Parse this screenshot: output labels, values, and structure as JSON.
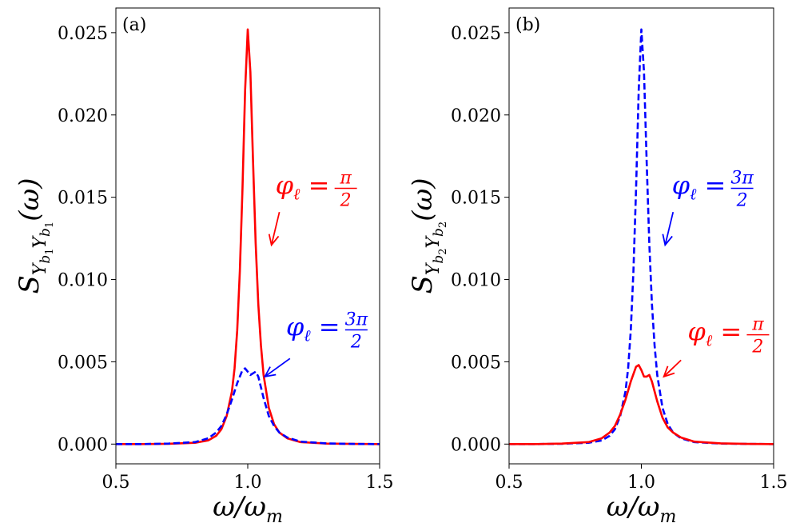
{
  "chart_data": [
    {
      "type": "line",
      "panel_label": "(a)",
      "xlabel": "ω/ω",
      "xlabel_sub": "m",
      "ylabel_main": "S",
      "ylabel_y1": "Y",
      "ylabel_y1_sub": "b",
      "ylabel_y1_subsub": "1",
      "ylabel_y2": "Y",
      "ylabel_y2_sub": "b",
      "ylabel_y2_subsub": "1",
      "ylabel_arg": "(ω)",
      "xlim": [
        0.5,
        1.5
      ],
      "ylim": [
        -0.0012,
        0.0265
      ],
      "xticks": [
        0.5,
        1.0,
        1.5
      ],
      "xtick_labels": [
        "0.5",
        "1.0",
        "1.5"
      ],
      "yticks": [
        0.0,
        0.005,
        0.01,
        0.015,
        0.02,
        0.025
      ],
      "ytick_labels": [
        "0.000",
        "0.005",
        "0.010",
        "0.015",
        "0.020",
        "0.025"
      ],
      "series": [
        {
          "name": "φℓ = π/2",
          "color": "#ff0000",
          "style": "solid",
          "x": [
            0.5,
            0.6,
            0.7,
            0.8,
            0.85,
            0.88,
            0.9,
            0.92,
            0.94,
            0.95,
            0.96,
            0.97,
            0.98,
            0.99,
            1.0,
            1.01,
            1.02,
            1.03,
            1.04,
            1.05,
            1.06,
            1.08,
            1.1,
            1.12,
            1.15,
            1.2,
            1.3,
            1.4,
            1.5
          ],
          "y": [
            0.0,
            0.0,
            2e-05,
            8e-05,
            0.00022,
            0.0005,
            0.0009,
            0.0017,
            0.0032,
            0.0046,
            0.0069,
            0.0105,
            0.0155,
            0.0215,
            0.0252,
            0.0226,
            0.0172,
            0.0122,
            0.0085,
            0.006,
            0.0042,
            0.0022,
            0.0012,
            0.0007,
            0.00035,
            0.00012,
            3e-05,
            1e-05,
            0.0
          ]
        },
        {
          "name": "φℓ = 3π/2",
          "color": "#0000ff",
          "style": "dashed",
          "x": [
            0.5,
            0.6,
            0.7,
            0.8,
            0.85,
            0.88,
            0.9,
            0.92,
            0.94,
            0.96,
            0.98,
            0.99,
            1.0,
            1.01,
            1.02,
            1.03,
            1.04,
            1.06,
            1.08,
            1.1,
            1.12,
            1.15,
            1.2,
            1.3,
            1.4,
            1.5
          ],
          "y": [
            0.0,
            0.0,
            3e-05,
            0.00012,
            0.00035,
            0.0007,
            0.0011,
            0.0018,
            0.0027,
            0.0037,
            0.0045,
            0.0046,
            0.0044,
            0.0042,
            0.0043,
            0.0044,
            0.0041,
            0.0028,
            0.0017,
            0.0011,
            0.0007,
            0.0004,
            0.00015,
            4e-05,
            1e-05,
            0.0
          ]
        }
      ],
      "annotations": [
        {
          "lhs": "φ",
          "sub": "ℓ",
          "eq": "=",
          "num": "π",
          "den": "2",
          "color": "#ff0000",
          "text_x": 1.105,
          "text_y": 0.0152,
          "arrow_from": [
            1.12,
            0.0141
          ],
          "arrow_to": [
            1.09,
            0.0121
          ]
        },
        {
          "lhs": "φ",
          "sub": "ℓ",
          "eq": "=",
          "num": "3π",
          "den": "2",
          "color": "#0000ff",
          "text_x": 1.145,
          "text_y": 0.0066,
          "arrow_from": [
            1.16,
            0.0052
          ],
          "arrow_to": [
            1.065,
            0.0041
          ]
        }
      ]
    },
    {
      "type": "line",
      "panel_label": "(b)",
      "xlabel": "ω/ω",
      "xlabel_sub": "m",
      "ylabel_main": "S",
      "ylabel_y1": "Y",
      "ylabel_y1_sub": "b",
      "ylabel_y1_subsub": "2",
      "ylabel_y2": "Y",
      "ylabel_y2_sub": "b",
      "ylabel_y2_subsub": "2",
      "ylabel_arg": "(ω)",
      "xlim": [
        0.5,
        1.5
      ],
      "ylim": [
        -0.0012,
        0.0265
      ],
      "xticks": [
        0.5,
        1.0,
        1.5
      ],
      "xtick_labels": [
        "0.5",
        "1.0",
        "1.5"
      ],
      "yticks": [
        0.0,
        0.005,
        0.01,
        0.015,
        0.02,
        0.025
      ],
      "ytick_labels": [
        "0.000",
        "0.005",
        "0.010",
        "0.015",
        "0.020",
        "0.025"
      ],
      "series": [
        {
          "name": "φℓ = 3π/2",
          "color": "#0000ff",
          "style": "dashed",
          "x": [
            0.5,
            0.6,
            0.7,
            0.8,
            0.85,
            0.88,
            0.9,
            0.92,
            0.94,
            0.95,
            0.96,
            0.97,
            0.98,
            0.99,
            1.0,
            1.01,
            1.02,
            1.03,
            1.04,
            1.05,
            1.06,
            1.08,
            1.1,
            1.12,
            1.15,
            1.2,
            1.3,
            1.4,
            1.5
          ],
          "y": [
            0.0,
            0.0,
            2e-05,
            8e-05,
            0.00022,
            0.0005,
            0.0009,
            0.0017,
            0.0032,
            0.0046,
            0.0069,
            0.0105,
            0.0155,
            0.0215,
            0.0252,
            0.0226,
            0.0172,
            0.0122,
            0.0085,
            0.006,
            0.0042,
            0.0022,
            0.0012,
            0.0007,
            0.00035,
            0.00012,
            3e-05,
            1e-05,
            0.0
          ]
        },
        {
          "name": "φℓ = π/2",
          "color": "#ff0000",
          "style": "solid",
          "x": [
            0.5,
            0.6,
            0.7,
            0.8,
            0.85,
            0.88,
            0.9,
            0.92,
            0.94,
            0.96,
            0.98,
            0.99,
            1.0,
            1.01,
            1.02,
            1.03,
            1.04,
            1.06,
            1.08,
            1.1,
            1.12,
            1.15,
            1.2,
            1.3,
            1.4,
            1.5
          ],
          "y": [
            0.0,
            0.0,
            3e-05,
            0.00012,
            0.00035,
            0.0007,
            0.0011,
            0.0018,
            0.0027,
            0.0038,
            0.0047,
            0.0048,
            0.0045,
            0.0041,
            0.0041,
            0.0042,
            0.0038,
            0.0026,
            0.0016,
            0.001,
            0.0007,
            0.0004,
            0.00015,
            4e-05,
            1e-05,
            0.0
          ]
        }
      ],
      "annotations": [
        {
          "lhs": "φ",
          "sub": "ℓ",
          "eq": "=",
          "num": "3π",
          "den": "2",
          "color": "#0000ff",
          "text_x": 1.115,
          "text_y": 0.0152,
          "arrow_from": [
            1.12,
            0.0141
          ],
          "arrow_to": [
            1.09,
            0.0121
          ]
        },
        {
          "lhs": "φ",
          "sub": "ℓ",
          "eq": "=",
          "num": "π",
          "den": "2",
          "color": "#ff0000",
          "text_x": 1.175,
          "text_y": 0.0063,
          "arrow_from": [
            1.15,
            0.0051
          ],
          "arrow_to": [
            1.085,
            0.0041
          ]
        }
      ]
    }
  ]
}
